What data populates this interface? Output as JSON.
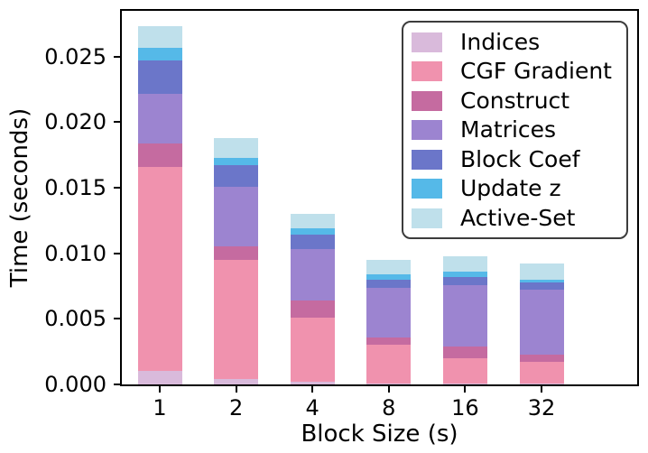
{
  "chart_data": {
    "type": "bar",
    "stacked": true,
    "title": "",
    "xlabel": "Block Size (s)",
    "ylabel": "Time (seconds)",
    "categories": [
      "1",
      "2",
      "4",
      "8",
      "16",
      "32"
    ],
    "series": [
      {
        "name": "Indices",
        "color": "#d9badb",
        "values": [
          0.001,
          0.0004,
          0.0002,
          0.0001,
          0.0001,
          0.0001
        ]
      },
      {
        "name": "CGF Gradient",
        "color": "#f092ae",
        "values": [
          0.0156,
          0.0091,
          0.0049,
          0.0029,
          0.0019,
          0.0016
        ]
      },
      {
        "name": "Construct",
        "color": "#c56ba0",
        "values": [
          0.0018,
          0.001,
          0.0013,
          0.0006,
          0.0009,
          0.0006
        ]
      },
      {
        "name": "Matrices",
        "color": "#9c84d0",
        "values": [
          0.0038,
          0.0046,
          0.0039,
          0.0038,
          0.0047,
          0.0049
        ]
      },
      {
        "name": "Block Coef",
        "color": "#6b76c9",
        "values": [
          0.0025,
          0.0016,
          0.0011,
          0.0006,
          0.0006,
          0.0006
        ]
      },
      {
        "name": "Update z",
        "color": "#55b9e8",
        "values": [
          0.001,
          0.0006,
          0.0005,
          0.0004,
          0.0004,
          0.0002
        ]
      },
      {
        "name": "Active-Set",
        "color": "#bfe0eb",
        "values": [
          0.0016,
          0.0015,
          0.0011,
          0.0011,
          0.0012,
          0.0012
        ]
      }
    ],
    "totals": [
      0.0273,
      0.0188,
      0.013,
      0.0095,
      0.0098,
      0.0092
    ],
    "ylim": [
      0,
      0.0285
    ],
    "yticks": [
      "0.000",
      "0.005",
      "0.010",
      "0.015",
      "0.020",
      "0.025"
    ],
    "legend_position": "upper right",
    "grid": false,
    "axis_color": "#000000",
    "background_color": "#ffffff"
  }
}
